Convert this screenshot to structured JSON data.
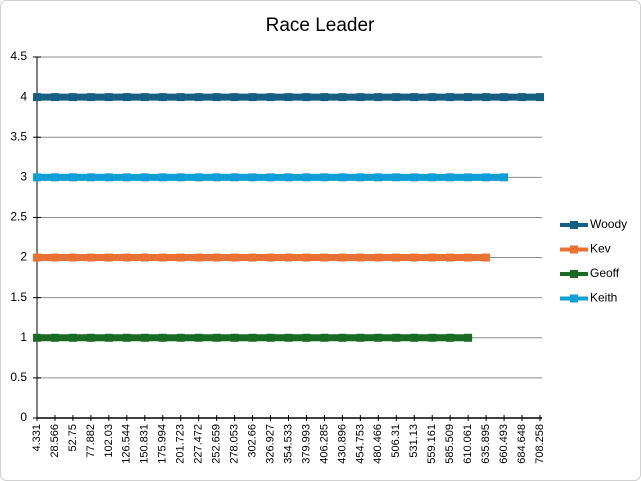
{
  "chart_data": {
    "type": "line",
    "title": "Race Leader",
    "x": [
      "4.331",
      "28.566",
      "52.75",
      "77.882",
      "102.03",
      "126.544",
      "150.831",
      "175.994",
      "201.723",
      "227.472",
      "252.659",
      "278.053",
      "302.66",
      "326.927",
      "354.533",
      "379.993",
      "406.285",
      "430.896",
      "454.753",
      "480.466",
      "506.31",
      "531.13",
      "559.161",
      "585.509",
      "610.061",
      "635.895",
      "660.493",
      "684.648",
      "708.258"
    ],
    "series": [
      {
        "name": "Woody",
        "color": "#156082",
        "values": [
          4,
          4,
          4,
          4,
          4,
          4,
          4,
          4,
          4,
          4,
          4,
          4,
          4,
          4,
          4,
          4,
          4,
          4,
          4,
          4,
          4,
          4,
          4,
          4,
          4,
          4,
          4,
          4,
          4
        ]
      },
      {
        "name": "Kev",
        "color": "#e97132",
        "values": [
          2,
          2,
          2,
          2,
          2,
          2,
          2,
          2,
          2,
          2,
          2,
          2,
          2,
          2,
          2,
          2,
          2,
          2,
          2,
          2,
          2,
          2,
          2,
          2,
          2,
          2,
          null,
          null,
          null
        ]
      },
      {
        "name": "Geoff",
        "color": "#196b24",
        "values": [
          1,
          1,
          1,
          1,
          1,
          1,
          1,
          1,
          1,
          1,
          1,
          1,
          1,
          1,
          1,
          1,
          1,
          1,
          1,
          1,
          1,
          1,
          1,
          1,
          1,
          null,
          null,
          null,
          null
        ]
      },
      {
        "name": "Keith",
        "color": "#0f9ed5",
        "values": [
          3,
          3,
          3,
          3,
          3,
          3,
          3,
          3,
          3,
          3,
          3,
          3,
          3,
          3,
          3,
          3,
          3,
          3,
          3,
          3,
          3,
          3,
          3,
          3,
          3,
          3,
          3,
          null,
          null
        ]
      }
    ],
    "ylim": [
      0,
      4.5
    ],
    "yticks": [
      0,
      0.5,
      1,
      1.5,
      2,
      2.5,
      3,
      3.5,
      4,
      4.5
    ],
    "grid": true,
    "legend": "right"
  }
}
